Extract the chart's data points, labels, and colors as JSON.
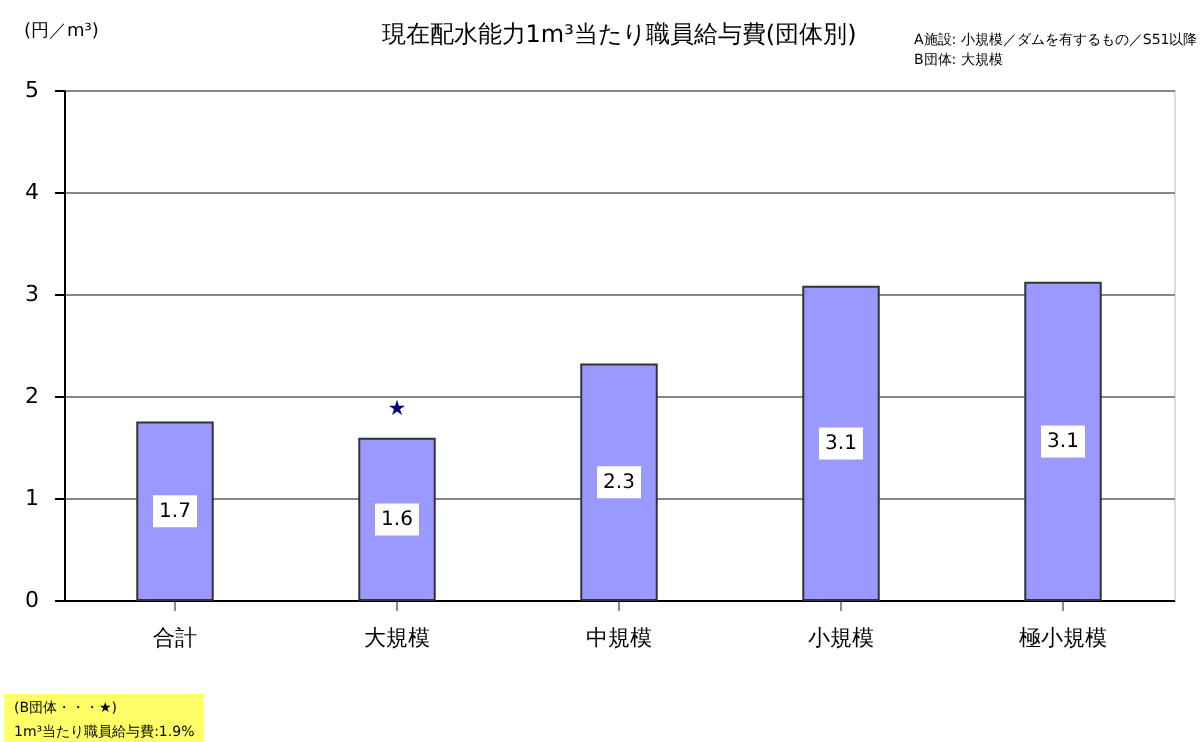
{
  "chart_data": {
    "type": "bar",
    "title": "現在配水能力1m³当たり職員給与費(団体別)",
    "ylabel": "(円／m³)",
    "categories": [
      "合計",
      "大規模",
      "中規模",
      "小規模",
      "極小規模"
    ],
    "series": [
      {
        "color": "#9999ff",
        "values": [
          1.74,
          1.58,
          2.31,
          3.07,
          3.11
        ],
        "value_labels": [
          "1.7",
          "1.6",
          "2.3",
          "3.1",
          "3.1"
        ]
      },
      {
        "type": "scatter",
        "color": "#000080",
        "marker": "star",
        "x": [
          "大規模"
        ],
        "values": [
          1.88
        ]
      }
    ],
    "ylim": [
      0,
      5
    ],
    "yticks": [
      0,
      1,
      2,
      3,
      4,
      5
    ],
    "grid": "y",
    "annotations": [
      "A施設: 小規模／ダムを有するもの／S51以降",
      "B団体: 大規模",
      "(B団体・・・★)",
      "1m³当たり職員給与費:1.9%"
    ]
  }
}
